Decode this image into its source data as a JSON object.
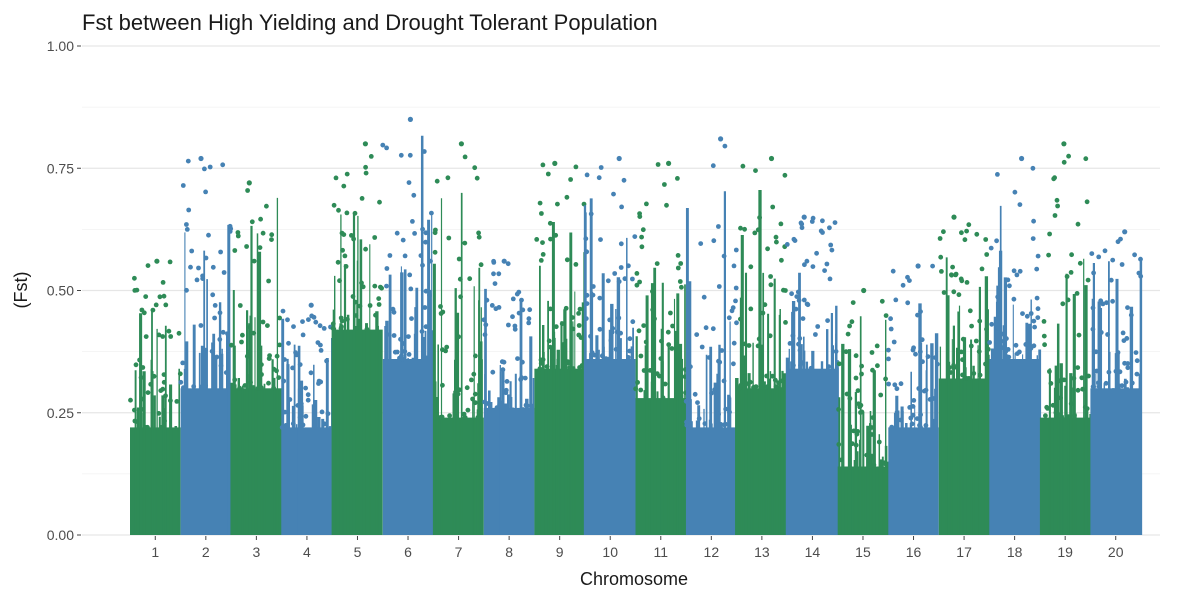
{
  "chart_data": {
    "type": "scatter",
    "title": "Fst between High Yielding and Drought Tolerant Population",
    "xlabel": "Chromosome",
    "ylabel": "(Fst)",
    "ylim": [
      0,
      1
    ],
    "yticks": [
      "0.00",
      "0.25",
      "0.50",
      "0.75",
      "1.00"
    ],
    "grid": true,
    "legend": "none",
    "colors": [
      "#2e8b57",
      "#4682b4"
    ],
    "chromosomes": [
      {
        "label": "1",
        "base": 0.22,
        "max": 0.56,
        "color": "#2e8b57"
      },
      {
        "label": "2",
        "base": 0.3,
        "max": 0.77,
        "color": "#4682b4"
      },
      {
        "label": "3",
        "base": 0.3,
        "max": 0.72,
        "color": "#2e8b57"
      },
      {
        "label": "4",
        "base": 0.22,
        "max": 0.47,
        "color": "#4682b4"
      },
      {
        "label": "5",
        "base": 0.42,
        "max": 0.8,
        "color": "#2e8b57"
      },
      {
        "label": "6",
        "base": 0.36,
        "max": 0.85,
        "color": "#4682b4"
      },
      {
        "label": "7",
        "base": 0.24,
        "max": 0.8,
        "color": "#2e8b57"
      },
      {
        "label": "8",
        "base": 0.26,
        "max": 0.56,
        "color": "#4682b4"
      },
      {
        "label": "9",
        "base": 0.34,
        "max": 0.76,
        "color": "#2e8b57"
      },
      {
        "label": "10",
        "base": 0.36,
        "max": 0.77,
        "color": "#4682b4"
      },
      {
        "label": "11",
        "base": 0.28,
        "max": 0.76,
        "color": "#2e8b57"
      },
      {
        "label": "12",
        "base": 0.22,
        "max": 0.81,
        "color": "#4682b4"
      },
      {
        "label": "13",
        "base": 0.3,
        "max": 0.77,
        "color": "#2e8b57"
      },
      {
        "label": "14",
        "base": 0.34,
        "max": 0.65,
        "color": "#4682b4"
      },
      {
        "label": "15",
        "base": 0.14,
        "max": 0.5,
        "color": "#2e8b57"
      },
      {
        "label": "16",
        "base": 0.22,
        "max": 0.55,
        "color": "#4682b4"
      },
      {
        "label": "17",
        "base": 0.32,
        "max": 0.65,
        "color": "#2e8b57"
      },
      {
        "label": "18",
        "base": 0.36,
        "max": 0.77,
        "color": "#4682b4"
      },
      {
        "label": "19",
        "base": 0.24,
        "max": 0.8,
        "color": "#2e8b57"
      },
      {
        "label": "20",
        "base": 0.3,
        "max": 0.62,
        "color": "#4682b4"
      }
    ]
  }
}
